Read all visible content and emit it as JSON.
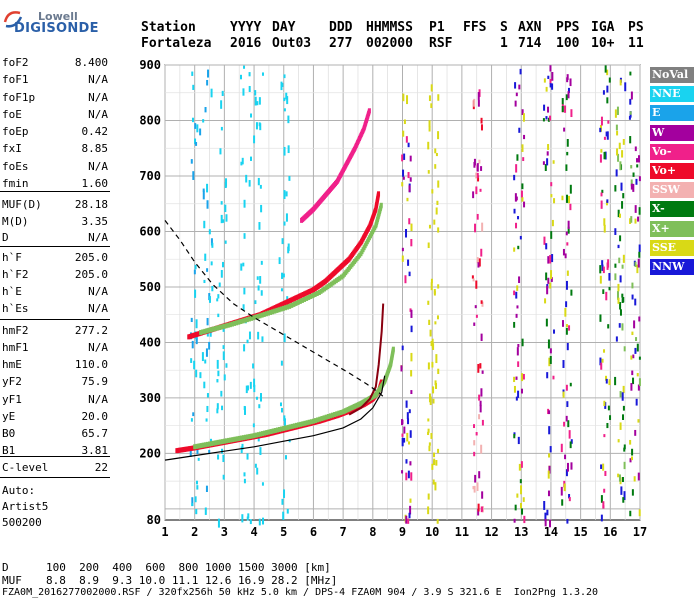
{
  "logo": {
    "line1": "Lowell",
    "line2": "DIGISONDE"
  },
  "header": {
    "labels": [
      "Station",
      "YYYY",
      "DAY",
      "DDD",
      "HHMMSS",
      "P1",
      "FFS",
      "S",
      "AXN",
      "PPS",
      "IGA",
      "PS"
    ],
    "values": [
      "Fortaleza",
      "2016",
      "Out03",
      "277",
      "002000",
      "RSF",
      "1",
      "714",
      "100",
      "10+",
      "11"
    ]
  },
  "params": [
    {
      "name": "foF2",
      "value": "8.400"
    },
    {
      "name": "foF1",
      "value": "N/A"
    },
    {
      "name": "foF1p",
      "value": "N/A"
    },
    {
      "name": "foE",
      "value": "N/A"
    },
    {
      "name": "foEp",
      "value": "0.42"
    },
    {
      "name": "fxI",
      "value": "8.85"
    },
    {
      "name": "foEs",
      "value": "N/A"
    },
    {
      "name": "fmin",
      "value": "1.60"
    },
    {
      "name": "MUF(D)",
      "value": "28.18"
    },
    {
      "name": "M(D)",
      "value": "3.35"
    },
    {
      "name": "D",
      "value": "N/A"
    },
    {
      "name": "h`F",
      "value": "205.0"
    },
    {
      "name": "h`F2",
      "value": "205.0"
    },
    {
      "name": "h`E",
      "value": "N/A"
    },
    {
      "name": "h`Es",
      "value": "N/A"
    },
    {
      "name": "hmF2",
      "value": "277.2"
    },
    {
      "name": "hmF1",
      "value": "N/A"
    },
    {
      "name": "hmE",
      "value": "110.0"
    },
    {
      "name": "yF2",
      "value": "75.9"
    },
    {
      "name": "yF1",
      "value": "N/A"
    },
    {
      "name": "yE",
      "value": "20.0"
    },
    {
      "name": "B0",
      "value": "65.7"
    },
    {
      "name": "B1",
      "value": "3.81"
    },
    {
      "name": "C-level",
      "value": "22"
    }
  ],
  "auto": {
    "line1": "Auto:",
    "line2": "Artist5",
    "line3": "500200"
  },
  "legend": [
    {
      "label": "NoVal",
      "color": "#808080"
    },
    {
      "label": "NNE",
      "color": "#19d3f0"
    },
    {
      "label": "E",
      "color": "#1aa3ea"
    },
    {
      "label": "W",
      "color": "#a3009e"
    },
    {
      "label": "Vo-",
      "color": "#f0208a"
    },
    {
      "label": "Vo+",
      "color": "#ee0a2a"
    },
    {
      "label": "SSW",
      "color": "#f3b1b1"
    },
    {
      "label": "X-",
      "color": "#007a10"
    },
    {
      "label": "X+",
      "color": "#7fbf5a"
    },
    {
      "label": "SSE",
      "color": "#d9d916"
    },
    {
      "label": "NNW",
      "color": "#1818d8"
    }
  ],
  "footer": {
    "d_label": "D",
    "d_values": "100  200  400  600  800 1000 1500 3000 [km]",
    "muf_label": "MUF",
    "muf_values": "8.8  8.9  9.3 10.0 11.1 12.6 16.9 28.2 [MHz]",
    "file_line": "FZA0M_2016277002000.RSF / 320fx256h 50 kHz 5.0 km / DPS-4 FZA0M 904 / 3.9 S 321.6 E  Ion2Png 1.3.20"
  },
  "chart_data": {
    "type": "scatter",
    "xlim": [
      1,
      17
    ],
    "ylim": [
      80,
      900
    ],
    "xticks": [
      "1",
      "2",
      "3",
      "4",
      "5",
      "6",
      "7",
      "8",
      "9",
      "10",
      "11",
      "12",
      "13",
      "14",
      "15",
      "16",
      "17"
    ],
    "yticks": [
      "80",
      "200",
      "300",
      "400",
      "500",
      "600",
      "700",
      "800",
      "900"
    ],
    "grid": true,
    "series": [
      {
        "name": "Vo+",
        "color": "#ee0a2a",
        "x": [
          1.4,
          2.0,
          2.6,
          3.2,
          3.8,
          4.4,
          5.0,
          5.6,
          6.2,
          6.8,
          7.3,
          7.7,
          8.0,
          8.2,
          8.3
        ],
        "y": [
          205,
          210,
          216,
          222,
          228,
          234,
          242,
          250,
          258,
          268,
          278,
          288,
          298,
          312,
          330
        ]
      },
      {
        "name": "X+",
        "color": "#7fbf5a",
        "x": [
          2.0,
          3.0,
          4.0,
          5.0,
          6.0,
          7.0,
          7.6,
          8.1,
          8.4,
          8.6,
          8.7
        ],
        "y": [
          212,
          222,
          232,
          245,
          258,
          275,
          290,
          305,
          330,
          360,
          390
        ]
      },
      {
        "name": "Vo+ 2-hop",
        "color": "#ee0a2a",
        "x": [
          1.8,
          2.4,
          3.0,
          3.6,
          4.2,
          4.8,
          5.4,
          6.0,
          6.4,
          6.8,
          7.2,
          7.6,
          7.9,
          8.1,
          8.2
        ],
        "y": [
          410,
          420,
          430,
          440,
          450,
          465,
          480,
          495,
          510,
          530,
          550,
          580,
          610,
          640,
          670
        ]
      },
      {
        "name": "X+ 2-hop",
        "color": "#7fbf5a",
        "x": [
          2.2,
          3.2,
          4.2,
          5.2,
          6.2,
          7.0,
          7.6,
          8.1,
          8.3
        ],
        "y": [
          418,
          432,
          448,
          465,
          490,
          520,
          560,
          610,
          650
        ]
      },
      {
        "name": "Vo- 3-hop",
        "color": "#f0208a",
        "x": [
          5.6,
          6.0,
          6.4,
          6.8,
          7.1,
          7.4,
          7.7,
          7.9
        ],
        "y": [
          620,
          640,
          665,
          690,
          720,
          750,
          785,
          820
        ]
      }
    ],
    "profile_solid": {
      "x": [
        1.0,
        2.0,
        3.0,
        4.0,
        5.0,
        6.0,
        7.0,
        7.6,
        8.0,
        8.3,
        8.4
      ],
      "y": [
        188,
        196,
        204,
        212,
        222,
        232,
        246,
        262,
        282,
        310,
        340
      ]
    },
    "profile_red": {
      "x": [
        7.2,
        7.6,
        7.9,
        8.1,
        8.2,
        8.3,
        8.35
      ],
      "y": [
        270,
        282,
        298,
        320,
        360,
        420,
        470
      ]
    },
    "profile_dashed": {
      "x": [
        1.0,
        1.5,
        2.0,
        2.6,
        3.3,
        4.0,
        4.8,
        5.6,
        6.4,
        7.2,
        7.8,
        8.2,
        8.4
      ],
      "y": [
        620,
        585,
        545,
        505,
        470,
        445,
        420,
        395,
        370,
        345,
        325,
        310,
        300
      ]
    }
  }
}
